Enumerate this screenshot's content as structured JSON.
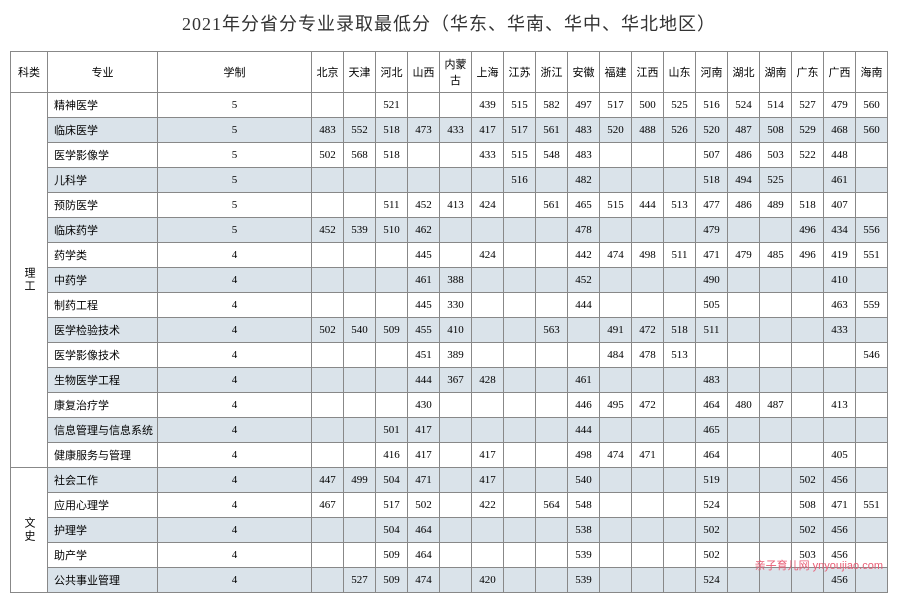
{
  "title": "2021年分省分专业录取最低分（华东、华南、华中、华北地区）",
  "watermark": "亲子育儿网\nynyoujiao.com",
  "headers": {
    "category": "科类",
    "major": "专业",
    "duration": "学制",
    "provinces": [
      "北京",
      "天津",
      "河北",
      "山西",
      "内蒙古",
      "上海",
      "江苏",
      "浙江",
      "安徽",
      "福建",
      "江西",
      "山东",
      "河南",
      "湖北",
      "湖南",
      "广东",
      "广西",
      "海南"
    ]
  },
  "categories": [
    {
      "name": "理工",
      "rows": [
        {
          "major": "精神医学",
          "duration": "5",
          "scores": [
            "",
            "",
            "521",
            "",
            "",
            "439",
            "515",
            "582",
            "497",
            "517",
            "500",
            "525",
            "516",
            "524",
            "514",
            "527",
            "479",
            "560"
          ]
        },
        {
          "major": "临床医学",
          "duration": "5",
          "scores": [
            "483",
            "552",
            "518",
            "473",
            "433",
            "417",
            "517",
            "561",
            "483",
            "520",
            "488",
            "526",
            "520",
            "487",
            "508",
            "529",
            "468",
            "560"
          ]
        },
        {
          "major": "医学影像学",
          "duration": "5",
          "scores": [
            "502",
            "568",
            "518",
            "",
            "",
            "433",
            "515",
            "548",
            "483",
            "",
            "",
            "",
            "507",
            "486",
            "503",
            "522",
            "448",
            ""
          ]
        },
        {
          "major": "儿科学",
          "duration": "5",
          "scores": [
            "",
            "",
            "",
            "",
            "",
            "",
            "516",
            "",
            "482",
            "",
            "",
            "",
            "518",
            "494",
            "525",
            "",
            "461",
            ""
          ]
        },
        {
          "major": "预防医学",
          "duration": "5",
          "scores": [
            "",
            "",
            "511",
            "452",
            "413",
            "424",
            "",
            "561",
            "465",
            "515",
            "444",
            "513",
            "477",
            "486",
            "489",
            "518",
            "407",
            ""
          ]
        },
        {
          "major": "临床药学",
          "duration": "5",
          "scores": [
            "452",
            "539",
            "510",
            "462",
            "",
            "",
            "",
            "",
            "478",
            "",
            "",
            "",
            "479",
            "",
            "",
            "496",
            "434",
            "556"
          ]
        },
        {
          "major": "药学类",
          "duration": "4",
          "scores": [
            "",
            "",
            "",
            "445",
            "",
            "424",
            "",
            "",
            "442",
            "474",
            "498",
            "511",
            "471",
            "479",
            "485",
            "496",
            "419",
            "551"
          ]
        },
        {
          "major": "中药学",
          "duration": "4",
          "scores": [
            "",
            "",
            "",
            "461",
            "388",
            "",
            "",
            "",
            "452",
            "",
            "",
            "",
            "490",
            "",
            "",
            "",
            "410",
            ""
          ]
        },
        {
          "major": "制药工程",
          "duration": "4",
          "scores": [
            "",
            "",
            "",
            "445",
            "330",
            "",
            "",
            "",
            "444",
            "",
            "",
            "",
            "505",
            "",
            "",
            "",
            "463",
            "559"
          ]
        },
        {
          "major": "医学检验技术",
          "duration": "4",
          "scores": [
            "502",
            "540",
            "509",
            "455",
            "410",
            "",
            "",
            "563",
            "",
            "491",
            "472",
            "518",
            "511",
            "",
            "",
            "",
            "433",
            ""
          ]
        },
        {
          "major": "医学影像技术",
          "duration": "4",
          "scores": [
            "",
            "",
            "",
            "451",
            "389",
            "",
            "",
            "",
            "",
            "484",
            "478",
            "513",
            "",
            "",
            "",
            "",
            "",
            "546"
          ]
        },
        {
          "major": "生物医学工程",
          "duration": "4",
          "scores": [
            "",
            "",
            "",
            "444",
            "367",
            "428",
            "",
            "",
            "461",
            "",
            "",
            "",
            "483",
            "",
            "",
            "",
            "",
            ""
          ]
        },
        {
          "major": "康复治疗学",
          "duration": "4",
          "scores": [
            "",
            "",
            "",
            "430",
            "",
            "",
            "",
            "",
            "446",
            "495",
            "472",
            "",
            "464",
            "480",
            "487",
            "",
            "413",
            ""
          ]
        },
        {
          "major": "信息管理与信息系统",
          "duration": "4",
          "scores": [
            "",
            "",
            "501",
            "417",
            "",
            "",
            "",
            "",
            "444",
            "",
            "",
            "",
            "465",
            "",
            "",
            "",
            "",
            ""
          ]
        },
        {
          "major": "健康服务与管理",
          "duration": "4",
          "scores": [
            "",
            "",
            "416",
            "417",
            "",
            "417",
            "",
            "",
            "498",
            "474",
            "471",
            "",
            "464",
            "",
            "",
            "",
            "405",
            ""
          ]
        }
      ]
    },
    {
      "name": "文史",
      "rows": [
        {
          "major": "社会工作",
          "duration": "4",
          "scores": [
            "447",
            "499",
            "504",
            "471",
            "",
            "417",
            "",
            "",
            "540",
            "",
            "",
            "",
            "519",
            "",
            "",
            "502",
            "456",
            ""
          ]
        },
        {
          "major": "应用心理学",
          "duration": "4",
          "scores": [
            "467",
            "",
            "517",
            "502",
            "",
            "422",
            "",
            "564",
            "548",
            "",
            "",
            "",
            "524",
            "",
            "",
            "508",
            "471",
            "551"
          ]
        },
        {
          "major": "护理学",
          "duration": "4",
          "scores": [
            "",
            "",
            "504",
            "464",
            "",
            "",
            "",
            "",
            "538",
            "",
            "",
            "",
            "502",
            "",
            "",
            "502",
            "456",
            ""
          ]
        },
        {
          "major": "助产学",
          "duration": "4",
          "scores": [
            "",
            "",
            "509",
            "464",
            "",
            "",
            "",
            "",
            "539",
            "",
            "",
            "",
            "502",
            "",
            "",
            "503",
            "456",
            ""
          ]
        },
        {
          "major": "公共事业管理",
          "duration": "4",
          "scores": [
            "",
            "527",
            "509",
            "474",
            "",
            "420",
            "",
            "",
            "539",
            "",
            "",
            "",
            "524",
            "",
            "",
            "",
            "456",
            ""
          ]
        }
      ]
    }
  ],
  "styling": {
    "title_fontsize": 18,
    "cell_fontsize": 11,
    "border_color": "#888888",
    "shaded_bg": "#dae3ea",
    "text_color": "#333333",
    "watermark_color": "#e85d75"
  }
}
